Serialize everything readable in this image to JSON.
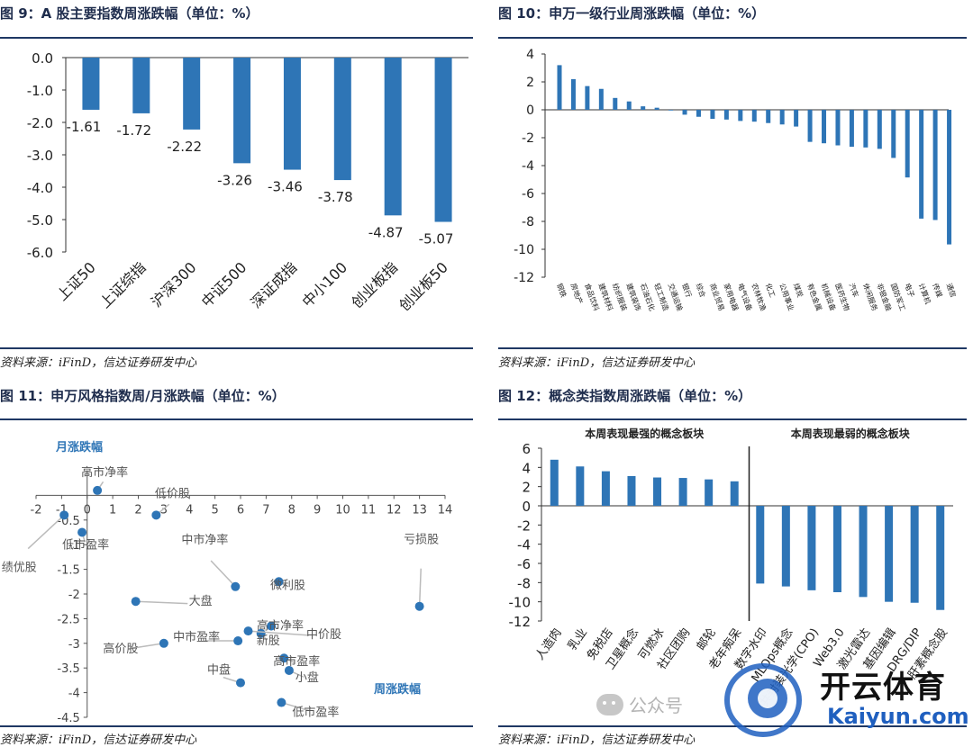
{
  "panels": {
    "p9": {
      "title": "图 9：A 股主要指数周涨跌幅（单位：%）",
      "source": "资料来源：iFinD，信达证券研发中心"
    },
    "p10": {
      "title": "图 10：申万一级行业周涨跌幅（单位：%）",
      "source": "资料来源：iFinD，信达证券研发中心"
    },
    "p11": {
      "title": "图 11：申万风格指数周/月涨跌幅（单位：%）",
      "source": "资料来源：iFinD，信达证券研发中心"
    },
    "p12": {
      "title": "图 12：概念类指数周涨跌幅（单位：%）",
      "source": "资料来源：iFinD，信达证券研发中心"
    }
  },
  "colors": {
    "bar": "#2e75b6",
    "title_rule": "#1f3864",
    "axis_label": "#2e75b6"
  },
  "chart_data": [
    {
      "type": "bar",
      "categories": [
        "上证50",
        "上证综指",
        "沪深300",
        "中证500",
        "深证成指",
        "中小100",
        "创业板指",
        "创业板50"
      ],
      "values": [
        -1.61,
        -1.72,
        -2.22,
        -3.26,
        -3.46,
        -3.78,
        -4.87,
        -5.07
      ],
      "data_labels": [
        "-1.61",
        "-1.72",
        "-2.22",
        "-3.26",
        "-3.46",
        "-3.78",
        "-4.87",
        "-5.07"
      ],
      "ylim": [
        -6.0,
        0.0
      ],
      "yticks": [
        "0.0",
        "-1.0",
        "-2.0",
        "-3.0",
        "-4.0",
        "-5.0",
        "-6.0"
      ],
      "grid": false
    },
    {
      "type": "bar",
      "categories": [
        "钢铁",
        "房地产",
        "食品饮料",
        "建筑材料",
        "纺织服装",
        "建筑装饰",
        "石油石化",
        "轻工制造",
        "交通运输",
        "银行",
        "综合",
        "商业贸易",
        "家用电器",
        "电气设备",
        "农林牧渔",
        "化工",
        "公用事业",
        "煤炭",
        "有色金属",
        "机械设备",
        "医药生物",
        "汽车",
        "休闲服务",
        "非银金融",
        "国防军工",
        "电子",
        "计算机",
        "传媒",
        "通信"
      ],
      "values": [
        3.2,
        2.2,
        1.7,
        1.5,
        0.85,
        0.6,
        0.25,
        0.15,
        -0.05,
        -0.35,
        -0.5,
        -0.65,
        -0.7,
        -0.8,
        -0.85,
        -0.95,
        -1.05,
        -1.2,
        -2.3,
        -2.4,
        -2.55,
        -2.65,
        -2.7,
        -2.8,
        -3.45,
        -4.85,
        -7.8,
        -7.9,
        -9.65
      ],
      "ylim": [
        -12,
        4
      ],
      "yticks": [
        "4",
        "2",
        "0",
        "-2",
        "-4",
        "-6",
        "-8",
        "-10",
        "-12"
      ],
      "grid": false
    },
    {
      "type": "scatter",
      "xlabel": "周涨跌幅",
      "ylabel": "月涨跌幅",
      "xlim": [
        -2,
        14
      ],
      "ylim": [
        -4.5,
        0.5
      ],
      "xticks": [
        "-2",
        "-1",
        "0",
        "1",
        "2",
        "3",
        "4",
        "5",
        "6",
        "7",
        "8",
        "9",
        "10",
        "11",
        "12",
        "13",
        "14"
      ],
      "yticks": [
        "-0.5",
        "-1",
        "-1.5",
        "-2",
        "-2.5",
        "-3",
        "-3.5",
        "-4",
        "-4.5"
      ],
      "points": [
        {
          "label": "高市净率",
          "x": 0.4,
          "y": 0.1
        },
        {
          "label": "低价股",
          "x": 2.7,
          "y": -0.4
        },
        {
          "label": "低市盈率",
          "x": -0.2,
          "y": -0.75
        },
        {
          "label": "绩优股",
          "x": -0.9,
          "y": -0.4
        },
        {
          "label": "亏损股",
          "x": 13.0,
          "y": -2.25
        },
        {
          "label": "中市净率",
          "x": 5.8,
          "y": -1.85
        },
        {
          "label": "大盘",
          "x": 1.9,
          "y": -2.15
        },
        {
          "label": "微利股",
          "x": 7.5,
          "y": -1.75
        },
        {
          "label": "高市净率",
          "x": 7.2,
          "y": -2.65
        },
        {
          "label": "新股",
          "x": 6.8,
          "y": -2.8
        },
        {
          "label": "中价股",
          "x": 6.3,
          "y": -2.75
        },
        {
          "label": "高价股",
          "x": 3.0,
          "y": -3.0
        },
        {
          "label": "中市盈率",
          "x": 5.9,
          "y": -2.95
        },
        {
          "label": "中盘",
          "x": 6.0,
          "y": -3.8
        },
        {
          "label": "小盘",
          "x": 7.9,
          "y": -3.55
        },
        {
          "label": "高市盈率",
          "x": 7.7,
          "y": -3.3
        },
        {
          "label": "低市盈率",
          "x": 7.6,
          "y": -4.2
        }
      ]
    },
    {
      "type": "bar",
      "groups": [
        "本周表现最强的概念板块",
        "本周表现最弱的概念板块"
      ],
      "categories": [
        "人造肉",
        "乳业",
        "免税店",
        "卫星概念",
        "可燃冰",
        "社区团购",
        "邮轮",
        "老年痴呆",
        "数字水印",
        "MLOps概念",
        "共封装光学(CPO)",
        "Web3.0",
        "激光雷达",
        "基因编辑",
        "DRG/DIP",
        "肝素概念股"
      ],
      "values": [
        4.8,
        4.1,
        3.6,
        3.1,
        2.95,
        2.9,
        2.75,
        2.55,
        -8.1,
        -8.4,
        -8.8,
        -9.0,
        -9.5,
        -10.0,
        -10.1,
        -10.85
      ],
      "ylim": [
        -12,
        6
      ],
      "yticks": [
        "6",
        "4",
        "2",
        "0",
        "-2",
        "-4",
        "-6",
        "-8",
        "-10",
        "-12"
      ],
      "grid": false
    }
  ],
  "watermark": {
    "wechat": "公众号",
    "brand_cn": "开云体育",
    "brand_en": "Kaiyun.com"
  }
}
